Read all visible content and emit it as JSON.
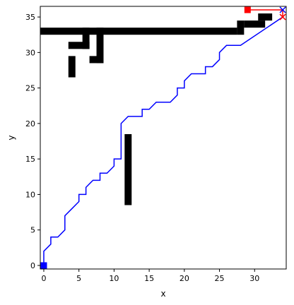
{
  "chart_data": {
    "type": "line",
    "xlabel": "x",
    "ylabel": "y",
    "xlim": [
      -0.5,
      34.5
    ],
    "ylim": [
      -0.5,
      36.5
    ],
    "x_ticks": [
      0,
      5,
      10,
      15,
      20,
      25,
      30
    ],
    "y_ticks": [
      0,
      5,
      10,
      15,
      20,
      25,
      30,
      35
    ],
    "grid": false,
    "colors": {
      "path_blue": "#0000ff",
      "path_red": "#ff0000",
      "obstacle": "#000000"
    },
    "obstacles": [
      {
        "x": [
          -0.5,
          27.5
        ],
        "y": [
          32.5,
          33.5
        ]
      },
      {
        "x": [
          5.5,
          6.5
        ],
        "y": [
          30.5,
          33.5
        ]
      },
      {
        "x": [
          3.5,
          6.5
        ],
        "y": [
          30.5,
          31.5
        ]
      },
      {
        "x": [
          3.5,
          4.5
        ],
        "y": [
          26.5,
          29.5
        ]
      },
      {
        "x": [
          7.5,
          8.5
        ],
        "y": [
          28.5,
          33.5
        ]
      },
      {
        "x": [
          6.5,
          8.5
        ],
        "y": [
          28.5,
          29.5
        ]
      },
      {
        "x": [
          27.5,
          28.5
        ],
        "y": [
          32.5,
          34.5
        ]
      },
      {
        "x": [
          28.5,
          31.5
        ],
        "y": [
          33.5,
          34.5
        ]
      },
      {
        "x": [
          30.5,
          32.5
        ],
        "y": [
          34.5,
          35.5
        ]
      },
      {
        "x": [
          11.5,
          12.5
        ],
        "y": [
          8.5,
          18.5
        ]
      }
    ],
    "series": [
      {
        "color": "#0000ff",
        "marker_start": "square",
        "x": [
          0,
          0,
          1,
          1,
          2,
          3,
          3,
          4,
          5,
          5,
          6,
          6,
          7,
          8,
          8,
          9,
          10,
          10,
          11,
          11,
          12,
          14,
          14,
          15,
          16,
          18,
          19,
          19,
          20,
          20,
          21,
          23,
          23,
          24,
          25,
          25,
          26,
          28,
          34
        ],
        "y": [
          0,
          2,
          3,
          4,
          4,
          5,
          7,
          8,
          9,
          10,
          10,
          11,
          12,
          12,
          13,
          13,
          14,
          15,
          15,
          20,
          21,
          21,
          22,
          22,
          23,
          23,
          24,
          25,
          25,
          26,
          27,
          27,
          28,
          28,
          29,
          30,
          31,
          31,
          35
        ]
      },
      {
        "color": "#ff0000",
        "marker_start": "square",
        "marker_end": "x",
        "x": [
          29,
          34,
          34
        ],
        "y": [
          36,
          36,
          35
        ]
      }
    ]
  }
}
